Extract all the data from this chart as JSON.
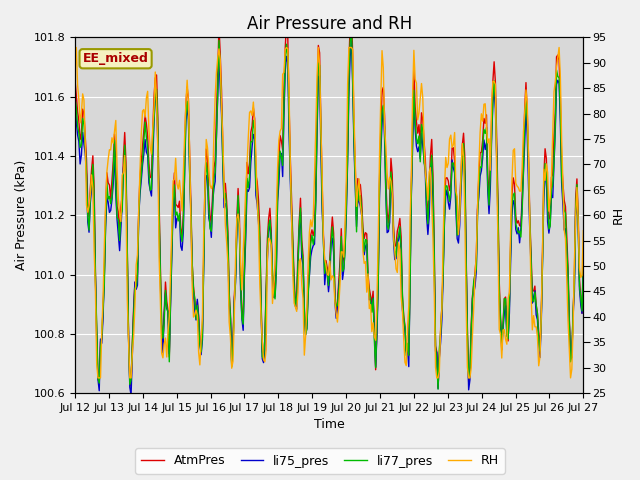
{
  "title": "Air Pressure and RH",
  "xlabel": "Time",
  "ylabel_left": "Air Pressure (kPa)",
  "ylabel_right": "RH",
  "annotation": "EE_mixed",
  "ylim_left": [
    100.6,
    101.8
  ],
  "ylim_right": [
    25,
    95
  ],
  "yticks_left": [
    100.6,
    100.8,
    101.0,
    101.2,
    101.4,
    101.6,
    101.8
  ],
  "yticks_right": [
    25,
    30,
    35,
    40,
    45,
    50,
    55,
    60,
    65,
    70,
    75,
    80,
    85,
    90,
    95
  ],
  "xtick_labels": [
    "Jul 12",
    "Jul 13",
    "Jul 14",
    "Jul 15",
    "Jul 16",
    "Jul 17",
    "Jul 18",
    "Jul 19",
    "Jul 20",
    "Jul 21",
    "Jul 22",
    "Jul 23",
    "Jul 24",
    "Jul 25",
    "Jul 26",
    "Jul 27"
  ],
  "colors": {
    "AtmPres": "#dd0000",
    "li75_pres": "#0000cc",
    "li77_pres": "#00bb00",
    "RH": "#ffaa00"
  },
  "legend_labels": [
    "AtmPres",
    "li75_pres",
    "li77_pres",
    "RH"
  ],
  "fig_bg": "#f0f0f0",
  "plot_bg": "#d8d8d8",
  "grid_color": "#ffffff",
  "title_fontsize": 12,
  "axis_fontsize": 9,
  "tick_fontsize": 8,
  "annot_fontsize": 9,
  "lw": 1.0,
  "n_points": 400,
  "days": 15
}
